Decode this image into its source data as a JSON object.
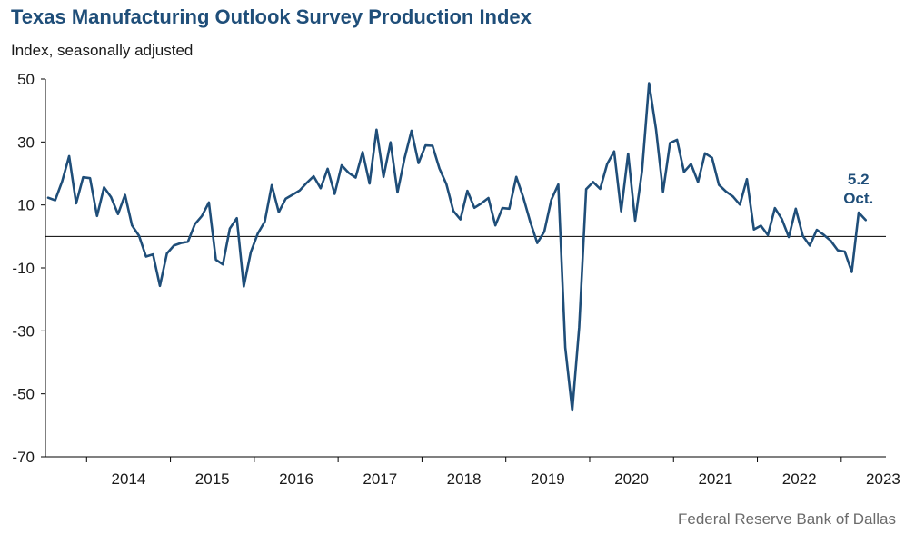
{
  "header": {
    "title": "Texas Manufacturing Outlook Survey Production Index",
    "subtitle": "Index, seasonally adjusted"
  },
  "footer": {
    "source": "Federal Reserve Bank of Dallas"
  },
  "colors": {
    "line": "#1f4e79",
    "axis": "#000000",
    "annotation": "#1f4e79"
  },
  "chart_data": {
    "type": "line",
    "title": "Texas Manufacturing Outlook Survey Production Index",
    "subtitle": "Index, seasonally adjusted",
    "ylim": [
      -70,
      50
    ],
    "yticks": [
      50,
      30,
      10,
      -10,
      -30,
      -50,
      -70
    ],
    "xticks": [
      "2014",
      "2015",
      "2016",
      "2017",
      "2018",
      "2019",
      "2020",
      "2021",
      "2022",
      "2023"
    ],
    "grid": false,
    "legend": "none",
    "start": "2013-07",
    "frequency": "monthly",
    "annotation": {
      "value": "5.2",
      "label": "Oct."
    },
    "series": [
      {
        "values": [
          12.3,
          11.5,
          17.5,
          25.5,
          10.5,
          18.8,
          18.5,
          6.5,
          15.6,
          12.5,
          7.1,
          13.2,
          3.5,
          0.2,
          -6.4,
          -5.7,
          -15.7,
          -5.4,
          -2.9,
          -2.1,
          -1.7,
          3.9,
          6.5,
          10.8,
          -7.4,
          -8.9,
          2.5,
          5.8,
          -15.9,
          -5.0,
          0.9,
          4.7,
          16.3,
          7.7,
          12.0,
          13.3,
          14.6,
          17.0,
          19.1,
          15.3,
          21.5,
          13.5,
          22.6,
          20.2,
          18.7,
          26.8,
          16.8,
          33.9,
          18.9,
          29.9,
          14.0,
          24.8,
          33.6,
          23.3,
          28.9,
          28.8,
          21.6,
          16.6,
          8.1,
          5.4,
          14.5,
          9.1,
          10.5,
          12.2,
          3.5,
          9.0,
          8.8,
          18.9,
          12.4,
          4.6,
          -2.1,
          1.5,
          11.6,
          16.5,
          -35.3,
          -55.3,
          -28.9,
          15.0,
          17.3,
          15.1,
          23.0,
          27.0,
          8.0,
          26.3,
          5.0,
          20.8,
          48.7,
          34.0,
          14.2,
          29.7,
          30.7,
          20.5,
          23.0,
          17.3,
          26.4,
          25.0,
          16.4,
          14.3,
          12.7,
          10.1,
          18.2,
          2.2,
          3.4,
          0.4,
          9.0,
          5.5,
          -0.2,
          8.8,
          0.2,
          -2.9,
          2.1,
          0.5,
          -1.4,
          -4.4,
          -4.8,
          -11.3,
          7.6,
          5.2
        ]
      }
    ]
  }
}
